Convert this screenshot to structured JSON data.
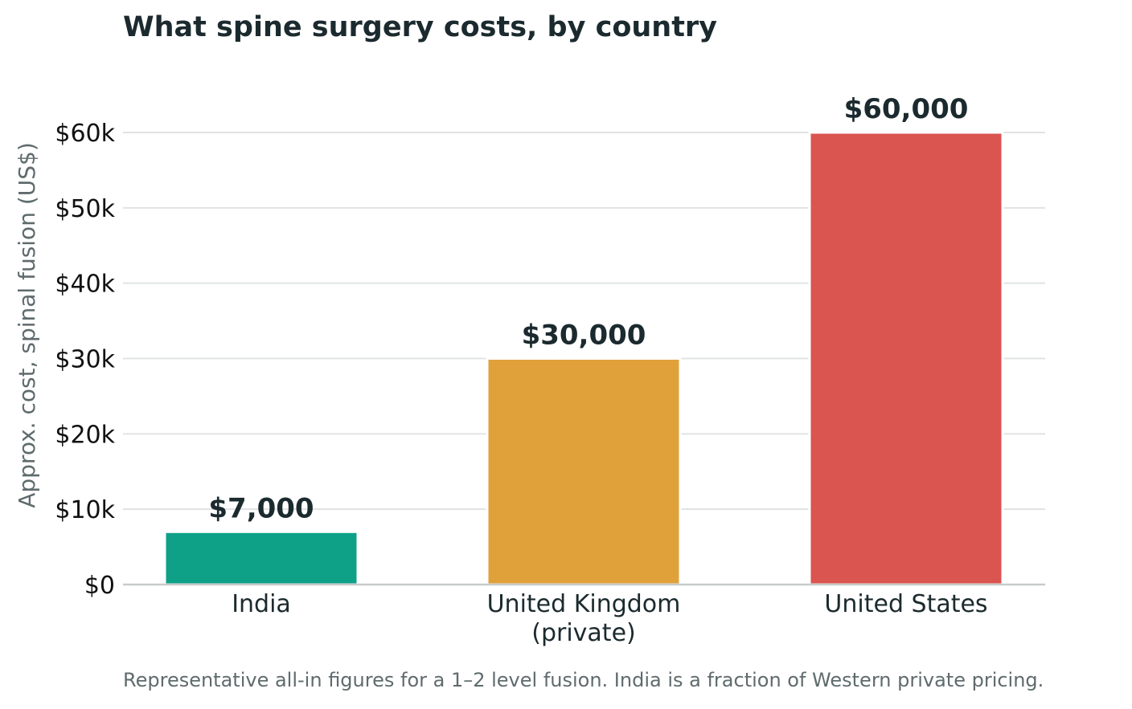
{
  "chart_data": {
    "type": "bar",
    "title": "What spine surgery costs, by country",
    "ylabel": "Approx. cost, spinal fusion (US$)",
    "xlabel": "",
    "note": "Representative all-in figures for a 1–2 level fusion. India is a fraction of Western private pricing.",
    "ylim": [
      0,
      60000
    ],
    "y_ticks": [
      0,
      10000,
      20000,
      30000,
      40000,
      50000,
      60000
    ],
    "y_tick_labels": [
      "$0",
      "$10k",
      "$20k",
      "$30k",
      "$40k",
      "$50k",
      "$60k"
    ],
    "grid": "horizontal",
    "categories": [
      [
        "India"
      ],
      [
        "United Kingdom",
        "(private)"
      ],
      [
        "United States"
      ]
    ],
    "values": [
      7000,
      30000,
      60000
    ],
    "value_labels": [
      "$7,000",
      "$30,000",
      "$60,000"
    ],
    "colors": [
      "#0fa088",
      "#e0a13b",
      "#da5450"
    ]
  }
}
